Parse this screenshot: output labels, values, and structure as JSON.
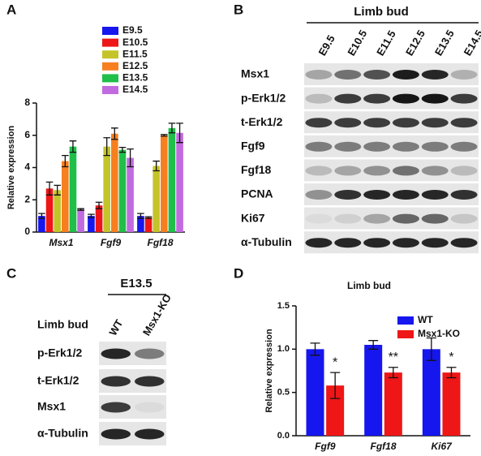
{
  "panels": [
    "A",
    "B",
    "C",
    "D"
  ],
  "chart_data": [
    {
      "type": "bar",
      "y_label": "Relative expression",
      "categories": [
        "Msx1",
        "Fgf9",
        "Fgf18"
      ],
      "series": [
        {
          "name": "E9.5",
          "color": "#1616ee",
          "values": [
            1.0,
            1.0,
            1.0
          ],
          "errors": [
            0.15,
            0.1,
            0.15
          ]
        },
        {
          "name": "E10.5",
          "color": "#ee1616",
          "values": [
            2.7,
            1.65,
            0.9
          ],
          "errors": [
            0.4,
            0.2,
            0.05
          ]
        },
        {
          "name": "E11.5",
          "color": "#c4c42a",
          "values": [
            2.6,
            5.3,
            4.1
          ],
          "errors": [
            0.3,
            0.55,
            0.3
          ]
        },
        {
          "name": "E12.5",
          "color": "#f77f1f",
          "values": [
            4.4,
            6.1,
            6.0
          ],
          "errors": [
            0.35,
            0.35,
            0.05
          ]
        },
        {
          "name": "E13.5",
          "color": "#1fbf4a",
          "values": [
            5.3,
            5.1,
            6.45
          ],
          "errors": [
            0.35,
            0.15,
            0.3
          ]
        },
        {
          "name": "E14.5",
          "color": "#c26be0",
          "values": [
            1.4,
            4.6,
            6.15
          ],
          "errors": [
            0.05,
            0.55,
            0.6
          ]
        }
      ],
      "ylim": [
        0,
        8
      ],
      "yticks": [
        0,
        2,
        4,
        6,
        8
      ],
      "grid": false
    },
    {
      "type": "bar",
      "title": "Limb bud",
      "y_label": "Relative expression",
      "categories": [
        "Fgf9",
        "Fgf18",
        "Ki67"
      ],
      "series": [
        {
          "name": "WT",
          "color": "#1616ee",
          "values": [
            1.0,
            1.05,
            1.0
          ],
          "errors": [
            0.07,
            0.05,
            0.13
          ]
        },
        {
          "name": "Msx1-KO",
          "color": "#ee1616",
          "values": [
            0.58,
            0.73,
            0.73
          ],
          "errors": [
            0.15,
            0.06,
            0.06
          ]
        }
      ],
      "annotations": [
        "*",
        "**",
        "*"
      ],
      "ylim": [
        0,
        1.5
      ],
      "yticks": [
        {
          "value": 0,
          "label": "0.0"
        },
        0.5,
        {
          "value": 1,
          "label": "1.0"
        },
        1.5
      ],
      "grid": false
    }
  ],
  "blot_b": {
    "header": "Limb bud",
    "lanes": [
      "E9.5",
      "E10.5",
      "E11.5",
      "E12.5",
      "E13.5",
      "E14.5"
    ],
    "rows": [
      "Msx1",
      "p-Erk1/2",
      "t-Erk1/2",
      "Fgf9",
      "Fgf18",
      "PCNA",
      "Ki67",
      "α-Tubulin"
    ]
  },
  "blot_c": {
    "header": "E13.5",
    "side_label": "Limb bud",
    "lanes": [
      "WT",
      "Msx1-KO"
    ],
    "rows": [
      "p-Erk1/2",
      "t-Erk1/2",
      "Msx1",
      "α-Tubulin"
    ]
  }
}
